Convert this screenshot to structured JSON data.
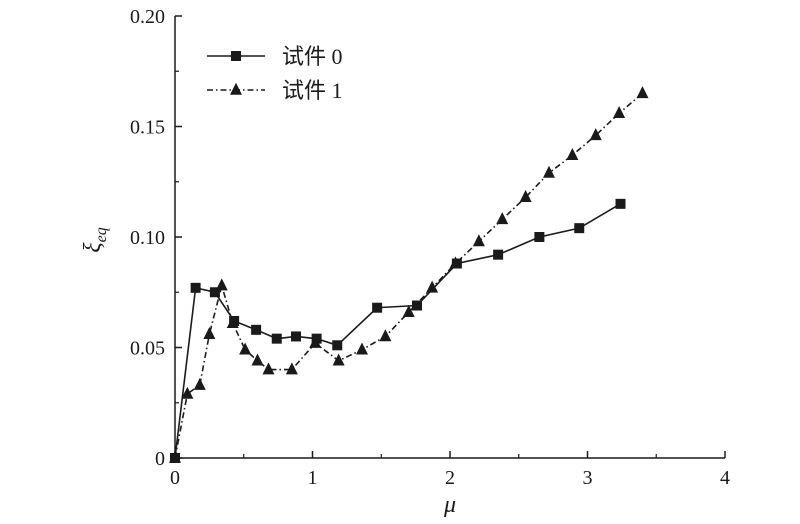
{
  "chart_data": {
    "type": "line",
    "xlabel": "μ",
    "ylabel": "ξ",
    "ylabel_sub": "eq",
    "xlim": [
      0,
      4
    ],
    "ylim": [
      0,
      0.2
    ],
    "xticks": [
      "0",
      "1",
      "2",
      "3",
      "4"
    ],
    "yticks": [
      "0",
      "0.05",
      "0.10",
      "0.15",
      "0.20"
    ],
    "grid": false,
    "legend_position": "top-left",
    "series": [
      {
        "name": "试件 0",
        "marker": "square",
        "line_style": "solid",
        "color": "#1a1a1a",
        "points": [
          [
            0.0,
            0.0
          ],
          [
            0.15,
            0.077
          ],
          [
            0.29,
            0.075
          ],
          [
            0.43,
            0.062
          ],
          [
            0.59,
            0.058
          ],
          [
            0.74,
            0.054
          ],
          [
            0.88,
            0.055
          ],
          [
            1.03,
            0.054
          ],
          [
            1.18,
            0.051
          ],
          [
            1.47,
            0.068
          ],
          [
            1.76,
            0.069
          ],
          [
            2.05,
            0.088
          ],
          [
            2.35,
            0.092
          ],
          [
            2.65,
            0.1
          ],
          [
            2.94,
            0.104
          ],
          [
            3.24,
            0.115
          ]
        ]
      },
      {
        "name": "试件 1",
        "marker": "triangle",
        "line_style": "dashdot",
        "color": "#1a1a1a",
        "points": [
          [
            0.0,
            0.0
          ],
          [
            0.09,
            0.029
          ],
          [
            0.18,
            0.033
          ],
          [
            0.25,
            0.056
          ],
          [
            0.34,
            0.078
          ],
          [
            0.42,
            0.061
          ],
          [
            0.51,
            0.049
          ],
          [
            0.6,
            0.044
          ],
          [
            0.68,
            0.04
          ],
          [
            0.85,
            0.04
          ],
          [
            1.02,
            0.052
          ],
          [
            1.19,
            0.044
          ],
          [
            1.36,
            0.049
          ],
          [
            1.53,
            0.055
          ],
          [
            1.7,
            0.066
          ],
          [
            1.87,
            0.077
          ],
          [
            2.04,
            0.088
          ],
          [
            2.21,
            0.098
          ],
          [
            2.38,
            0.108
          ],
          [
            2.55,
            0.118
          ],
          [
            2.72,
            0.129
          ],
          [
            2.89,
            0.137
          ],
          [
            3.06,
            0.146
          ],
          [
            3.23,
            0.156
          ],
          [
            3.4,
            0.165
          ]
        ]
      }
    ]
  }
}
